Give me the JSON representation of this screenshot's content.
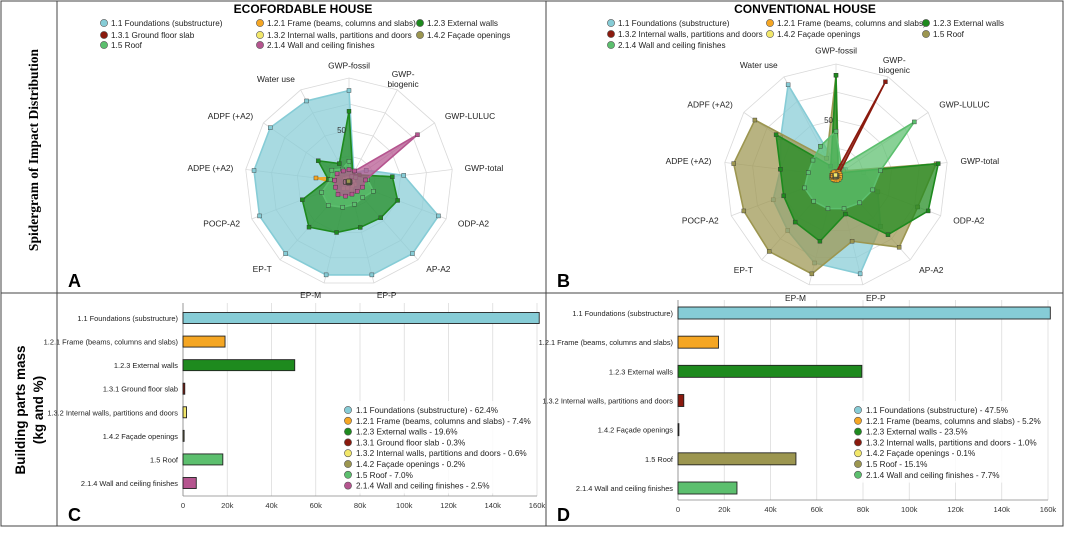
{
  "labels": {
    "row_top": "Spidergram of Impact Distribution",
    "row_bottom_line1": "Building parts mass",
    "row_bottom_line2": "(kg and %)",
    "panel_a": "A",
    "panel_b": "B",
    "panel_c": "C",
    "panel_d": "D"
  },
  "colors": {
    "foundations": "#86ccd6",
    "frame": "#f5a623",
    "ext_walls": "#1e8a1e",
    "floor_slab": "#8b1a0e",
    "int_walls": "#f2e76a",
    "facade": "#9c9650",
    "roof": "#5cbf6e",
    "finishes": "#b5558f"
  },
  "chart_data": [
    {
      "type": "radar",
      "title": "ECOFORDABLE HOUSE",
      "axes": [
        "GWP-fossil",
        "GWP-biogenic",
        "GWP-LULUC",
        "GWP-total",
        "ODP-A2",
        "AP-A2",
        "EP-P",
        "EP-M",
        "EP-T",
        "POCP-A2",
        "ADPE (+A2)",
        "ADPF (+A2)",
        "Water use"
      ],
      "rlim": [
        0,
        100
      ],
      "ring_labels": [
        "0",
        "50"
      ],
      "legend": [
        "1.1 Foundations (substructure)",
        "1.2.1 Frame (beams, columns and slabs)",
        "1.2.3 External walls",
        "1.3.1 Ground floor slab",
        "1.3.2 Internal walls, partitions and doors",
        "2.1.4 Wall and ceiling finishes",
        "1.5 Roof",
        "1.4.2 Façade openings"
      ],
      "series": [
        {
          "name": "1.1 Foundations (substructure)",
          "key": "foundations",
          "values": [
            88,
            10,
            20,
            53,
            92,
            92,
            92,
            92,
            92,
            92,
            92,
            92,
            88
          ]
        },
        {
          "name": "1.2.1 Frame (beams, columns and slabs)",
          "key": "frame",
          "values": [
            5,
            3,
            3,
            5,
            6,
            4,
            3,
            5,
            6,
            8,
            32,
            8,
            6
          ]
        },
        {
          "name": "1.2.3 External walls",
          "key": "ext_walls",
          "values": [
            68,
            8,
            12,
            42,
            50,
            46,
            45,
            50,
            58,
            48,
            20,
            36,
            20
          ]
        },
        {
          "name": "1.3.1 Ground floor slab",
          "key": "floor_slab",
          "values": [
            2,
            1,
            1,
            2,
            2,
            2,
            2,
            2,
            2,
            2,
            2,
            2,
            2
          ]
        },
        {
          "name": "1.3.2 Internal walls, partitions and doors",
          "key": "int_walls",
          "values": [
            4,
            2,
            2,
            4,
            6,
            5,
            10,
            6,
            8,
            5,
            5,
            5,
            4
          ]
        },
        {
          "name": "1.5 Roof",
          "key": "roof",
          "values": [
            20,
            6,
            8,
            18,
            25,
            20,
            22,
            25,
            30,
            28,
            18,
            20,
            14
          ]
        },
        {
          "name": "2.1.4 Wall and ceiling finishes",
          "key": "finishes",
          "values": [
            12,
            12,
            80,
            16,
            14,
            12,
            12,
            14,
            16,
            14,
            14,
            14,
            12
          ]
        },
        {
          "name": "1.4.2 Façade openings",
          "key": "facade",
          "values": [
            1,
            1,
            1,
            1,
            1,
            1,
            1,
            1,
            1,
            1,
            1,
            1,
            1
          ]
        }
      ]
    },
    {
      "type": "radar",
      "title": "CONVENTIONAL HOUSE",
      "axes": [
        "GWP-fossil",
        "GWP-biogenic",
        "GWP-LULUC",
        "GWP-total",
        "ODP-A2",
        "AP-A2",
        "EP-P",
        "EP-M",
        "EP-T",
        "POCP-A2",
        "ADPE (+A2)",
        "ADPF (+A2)",
        "Water use"
      ],
      "rlim": [
        0,
        100
      ],
      "ring_labels": [
        "0",
        "50"
      ],
      "legend": [
        "1.1 Foundations (substructure)",
        "1.2.1 Frame (beams, columns and slabs)",
        "1.2.3 External walls",
        "1.3.2 Internal walls, partitions and doors",
        "1.4.2 Façade openings",
        "1.5 Roof",
        "2.1.4 Wall and ceiling finishes"
      ],
      "series": [
        {
          "name": "1.1 Foundations (substructure)",
          "key": "foundations",
          "values": [
            10,
            5,
            10,
            25,
            40,
            60,
            90,
            80,
            65,
            60,
            50,
            60,
            92
          ]
        },
        {
          "name": "1.5 Roof",
          "key": "facade",
          "values": [
            90,
            5,
            8,
            90,
            78,
            85,
            60,
            90,
            90,
            88,
            92,
            88,
            18
          ]
        },
        {
          "name": "1.2.3 External walls",
          "key": "ext_walls",
          "values": [
            90,
            4,
            5,
            92,
            88,
            70,
            35,
            60,
            55,
            50,
            50,
            65,
            10
          ]
        },
        {
          "name": "2.1.4 Wall and ceiling finishes",
          "key": "roof",
          "values": [
            40,
            10,
            85,
            40,
            35,
            32,
            30,
            30,
            30,
            30,
            25,
            25,
            30
          ]
        },
        {
          "name": "1.3.2 Internal walls, partitions and doors",
          "key": "floor_slab",
          "values": [
            3,
            95,
            3,
            3,
            3,
            3,
            3,
            3,
            3,
            3,
            3,
            3,
            3
          ]
        },
        {
          "name": "1.2.1 Frame (beams, columns and slabs)",
          "key": "frame",
          "values": [
            4,
            4,
            4,
            4,
            4,
            4,
            4,
            4,
            4,
            4,
            4,
            4,
            4
          ]
        },
        {
          "name": "1.4.2 Façade openings",
          "key": "int_walls",
          "values": [
            1,
            1,
            1,
            1,
            1,
            1,
            1,
            1,
            1,
            1,
            1,
            1,
            1
          ]
        }
      ]
    },
    {
      "type": "bar",
      "orientation": "horizontal",
      "categories": [
        "1.1 Foundations (substructure)",
        "1.2.1 Frame (beams, columns and slabs)",
        "1.2.3 External walls",
        "1.3.1 Ground floor slab",
        "1.3.2 Internal walls, partitions and doors",
        "1.4.2 Façade openings",
        "1.5 Roof",
        "2.1.4 Wall and ceiling finishes"
      ],
      "keys": [
        "foundations",
        "frame",
        "ext_walls",
        "floor_slab",
        "int_walls",
        "facade",
        "roof",
        "finishes"
      ],
      "values": [
        161000,
        19000,
        50500,
        800,
        1600,
        500,
        18000,
        6000
      ],
      "xlim": [
        0,
        160000
      ],
      "ticks": [
        "0",
        "20k",
        "40k",
        "60k",
        "80k",
        "100k",
        "120k",
        "140k",
        "160k"
      ],
      "legend": [
        "1.1 Foundations (substructure) - 62.4%",
        "1.2.1 Frame (beams, columns and slabs) - 7.4%",
        "1.2.3 External walls - 19.6%",
        "1.3.1 Ground floor slab - 0.3%",
        "1.3.2 Internal walls, partitions and doors - 0.6%",
        "1.4.2 Façade openings - 0.2%",
        "1.5 Roof - 7.0%",
        "2.1.4 Wall and ceiling finishes - 2.5%"
      ],
      "legend_keys": [
        "foundations",
        "frame",
        "ext_walls",
        "floor_slab",
        "int_walls",
        "facade",
        "roof",
        "finishes"
      ]
    },
    {
      "type": "bar",
      "orientation": "horizontal",
      "categories": [
        "1.1 Foundations (substructure)",
        "1.2.1 Frame (beams, columns and slabs)",
        "1.2.3 External walls",
        "1.3.2 Internal walls, partitions and doors",
        "1.4.2 Façade openings",
        "1.5 Roof",
        "2.1.4 Wall and ceiling finishes"
      ],
      "keys": [
        "foundations",
        "frame",
        "ext_walls",
        "floor_slab",
        "int_walls",
        "facade",
        "roof"
      ],
      "values": [
        161000,
        17500,
        79500,
        2500,
        300,
        51000,
        25500
      ],
      "xlim": [
        0,
        160000
      ],
      "ticks": [
        "0",
        "20k",
        "40k",
        "60k",
        "80k",
        "100k",
        "120k",
        "140k",
        "160k"
      ],
      "legend": [
        "1.1 Foundations (substructure) - 47.5%",
        "1.2.1 Frame (beams, columns and slabs) - 5.2%",
        "1.2.3 External walls - 23.5%",
        "1.3.2 Internal walls, partitions and doors - 1.0%",
        "1.4.2 Façade openings - 0.1%",
        "1.5 Roof - 15.1%",
        "2.1.4 Wall and ceiling finishes - 7.7%"
      ],
      "legend_keys": [
        "foundations",
        "frame",
        "ext_walls",
        "floor_slab",
        "int_walls",
        "facade",
        "roof"
      ]
    }
  ]
}
